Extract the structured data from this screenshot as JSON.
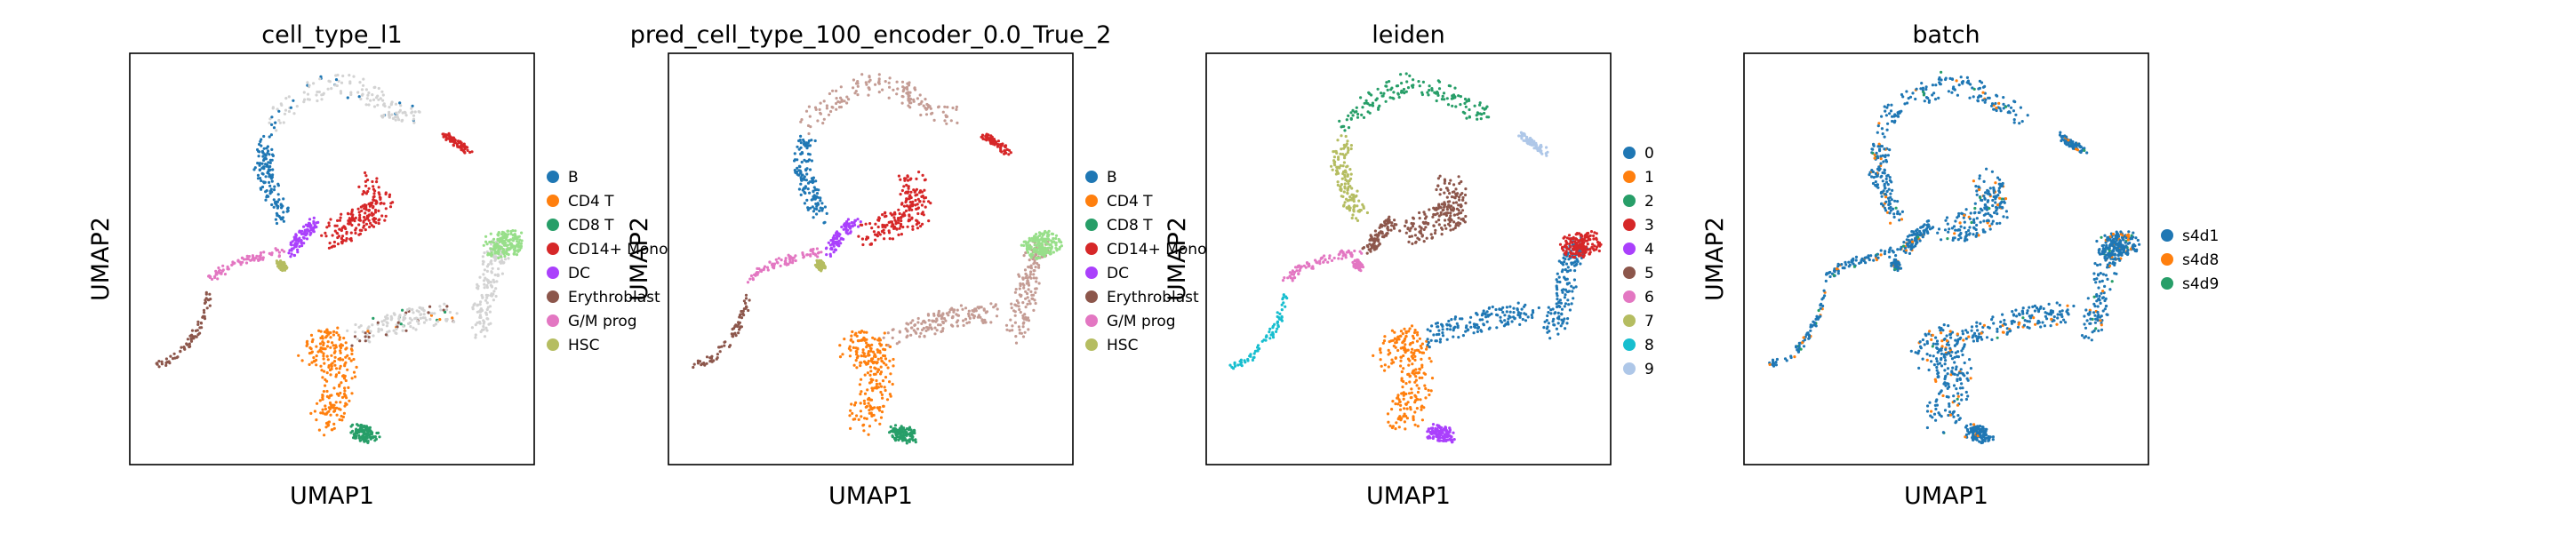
{
  "figure": {
    "background": "#ffffff"
  },
  "chart_data": [
    {
      "type": "scatter",
      "title": "cell_type_l1",
      "xlabel": "UMAP1",
      "ylabel": "UMAP2",
      "grid": false,
      "ticks": false,
      "legend_position": "right",
      "legend": [
        {
          "label": "B",
          "color": "#1f77b4"
        },
        {
          "label": "CD4 T",
          "color": "#ff7f0e"
        },
        {
          "label": "CD8 T",
          "color": "#279e68"
        },
        {
          "label": "CD14+ Mono",
          "color": "#d62728"
        },
        {
          "label": "DC",
          "color": "#aa40fc"
        },
        {
          "label": "Erythroblast",
          "color": "#8c564b"
        },
        {
          "label": "G/M prog",
          "color": "#e377c2"
        },
        {
          "label": "HSC",
          "color": "#b5bd61"
        }
      ]
    },
    {
      "type": "scatter",
      "title": "pred_cell_type_100_encoder_0.0_True_2",
      "xlabel": "UMAP1",
      "ylabel": "UMAP2",
      "grid": false,
      "ticks": false,
      "legend_position": "right",
      "legend": [
        {
          "label": "B",
          "color": "#1f77b4"
        },
        {
          "label": "CD4 T",
          "color": "#ff7f0e"
        },
        {
          "label": "CD8 T",
          "color": "#279e68"
        },
        {
          "label": "CD14+ Mono",
          "color": "#d62728"
        },
        {
          "label": "DC",
          "color": "#aa40fc"
        },
        {
          "label": "Erythroblast",
          "color": "#8c564b"
        },
        {
          "label": "G/M prog",
          "color": "#e377c2"
        },
        {
          "label": "HSC",
          "color": "#b5bd61"
        }
      ]
    },
    {
      "type": "scatter",
      "title": "leiden",
      "xlabel": "UMAP1",
      "ylabel": "UMAP2",
      "grid": false,
      "ticks": false,
      "legend_position": "right",
      "legend": [
        {
          "label": "0",
          "color": "#1f77b4"
        },
        {
          "label": "1",
          "color": "#ff7f0e"
        },
        {
          "label": "2",
          "color": "#279e68"
        },
        {
          "label": "3",
          "color": "#d62728"
        },
        {
          "label": "4",
          "color": "#aa40fc"
        },
        {
          "label": "5",
          "color": "#8c564b"
        },
        {
          "label": "6",
          "color": "#e377c2"
        },
        {
          "label": "7",
          "color": "#b5bd61"
        },
        {
          "label": "8",
          "color": "#17becf"
        },
        {
          "label": "9",
          "color": "#aec7e8"
        }
      ]
    },
    {
      "type": "scatter",
      "title": "batch",
      "xlabel": "UMAP1",
      "ylabel": "UMAP2",
      "grid": false,
      "ticks": false,
      "legend_position": "right",
      "legend": [
        {
          "label": "s4d1",
          "color": "#1f77b4"
        },
        {
          "label": "s4d8",
          "color": "#ff7f0e"
        },
        {
          "label": "s4d9",
          "color": "#279e68"
        }
      ]
    }
  ]
}
